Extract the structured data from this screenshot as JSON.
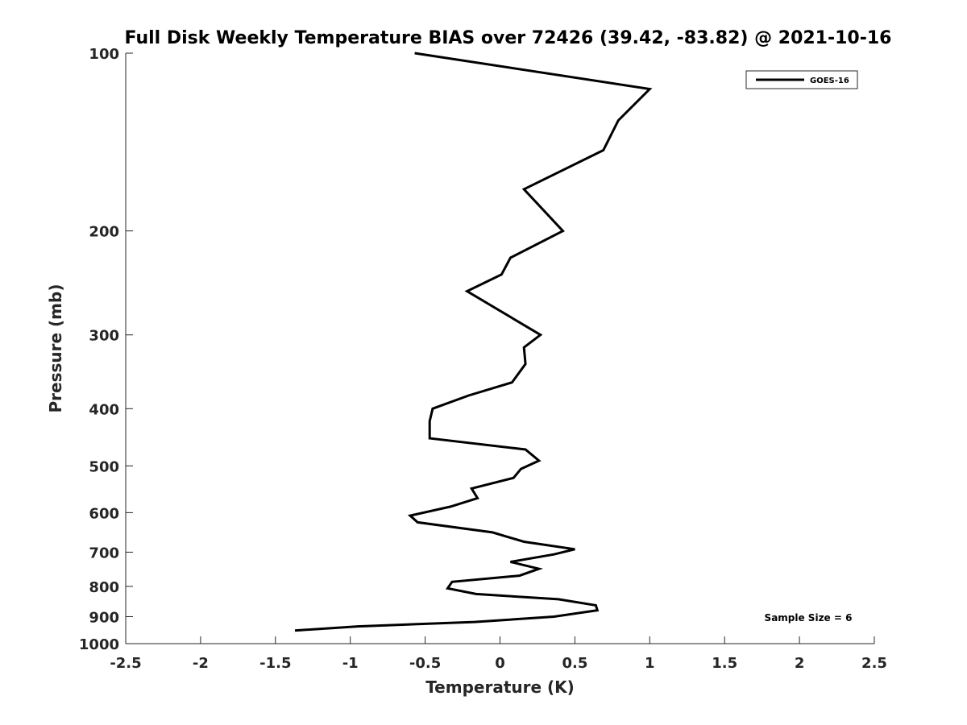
{
  "chart_data": {
    "type": "line",
    "title": "Full Disk Weekly Temperature BIAS over 72426 (39.42, -83.82) @ 2021-10-16",
    "xlabel": "Temperature (K)",
    "ylabel": "Pressure (mb)",
    "xlim": [
      -2.5,
      2.5
    ],
    "ylim": [
      1000,
      100
    ],
    "y_scale": "log",
    "y_reversed": true,
    "grid": false,
    "legend_position": "top-right",
    "x_ticks": [
      "-2.5",
      "-2",
      "-1.5",
      "-1",
      "-0.5",
      "0",
      "0.5",
      "1",
      "1.5",
      "2",
      "2.5"
    ],
    "y_ticks": [
      "100",
      "200",
      "300",
      "400",
      "500",
      "600",
      "700",
      "800",
      "900",
      "1000"
    ],
    "annotation": "Sample Size = 6",
    "series": [
      {
        "name": "GOES-16",
        "color": "#000000",
        "points": [
          [
            -0.57,
            100
          ],
          [
            1.0,
            115
          ],
          [
            0.79,
            130
          ],
          [
            0.69,
            146
          ],
          [
            0.16,
            170
          ],
          [
            0.42,
            200
          ],
          [
            0.07,
            222
          ],
          [
            0.01,
            237
          ],
          [
            -0.22,
            253
          ],
          [
            0.27,
            300
          ],
          [
            0.16,
            315
          ],
          [
            0.17,
            336
          ],
          [
            0.08,
            361
          ],
          [
            -0.21,
            380
          ],
          [
            -0.45,
            400
          ],
          [
            -0.47,
            420
          ],
          [
            -0.47,
            449
          ],
          [
            0.17,
            469
          ],
          [
            0.26,
            490
          ],
          [
            0.14,
            506
          ],
          [
            0.09,
            524
          ],
          [
            -0.19,
            546
          ],
          [
            -0.15,
            567
          ],
          [
            -0.33,
            586
          ],
          [
            -0.6,
            607
          ],
          [
            -0.55,
            623
          ],
          [
            -0.05,
            648
          ],
          [
            0.16,
            672
          ],
          [
            0.5,
            692
          ],
          [
            0.36,
            706
          ],
          [
            0.07,
            727
          ],
          [
            0.26,
            747
          ],
          [
            0.13,
            767
          ],
          [
            -0.32,
            786
          ],
          [
            -0.35,
            806
          ],
          [
            -0.16,
            824
          ],
          [
            0.39,
            841
          ],
          [
            0.64,
            861
          ],
          [
            0.65,
            878
          ],
          [
            0.36,
            900
          ],
          [
            -0.17,
            919
          ],
          [
            -0.95,
            935
          ],
          [
            -1.37,
            950
          ]
        ]
      }
    ]
  }
}
